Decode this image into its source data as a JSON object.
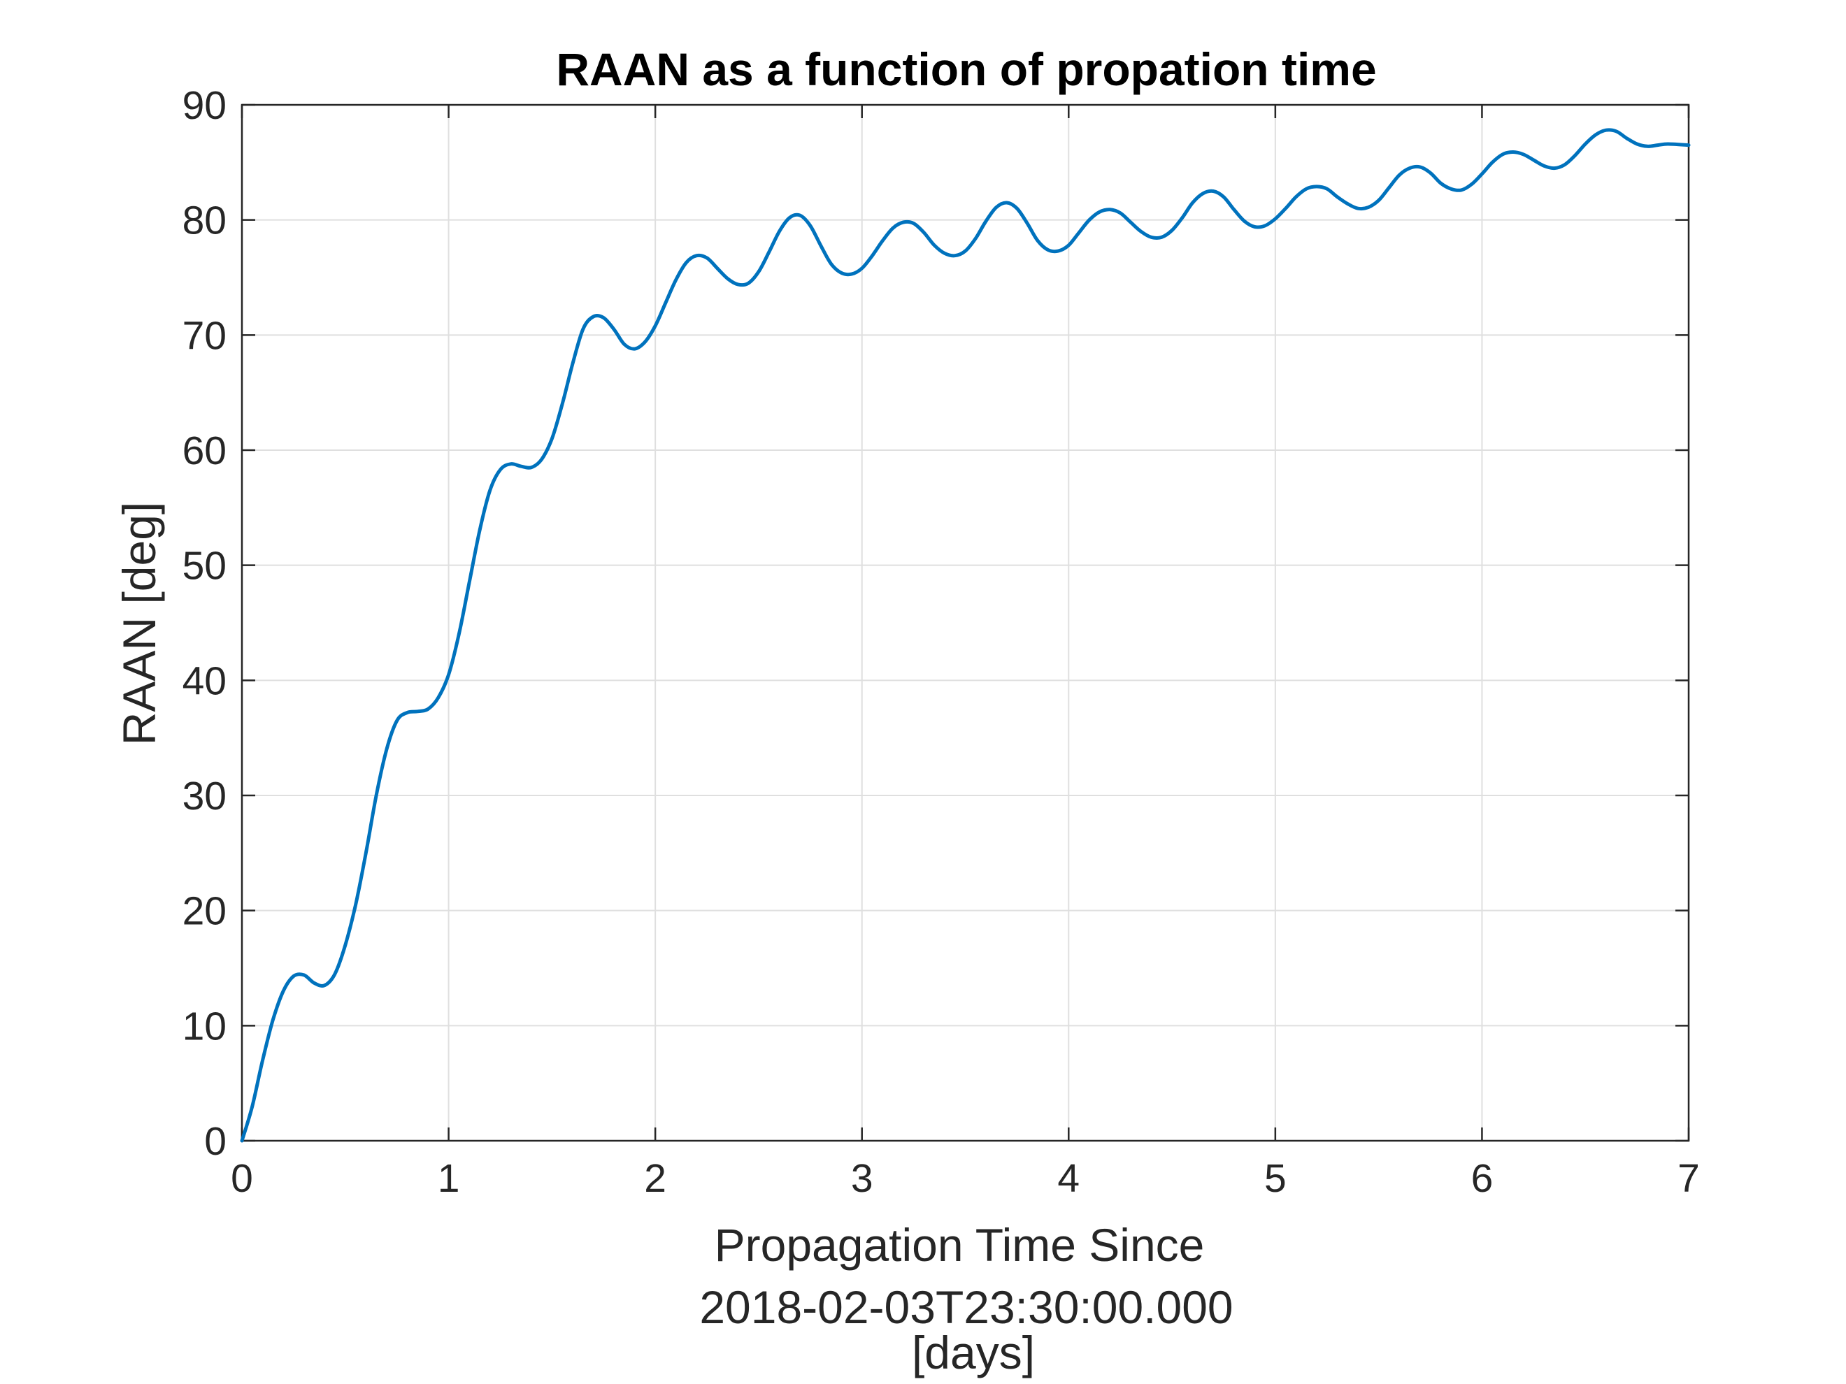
{
  "chart_data": {
    "type": "line",
    "title": "RAAN as a function of propation time",
    "xlabel_lines": [
      "Propagation Time Since",
      "2018-02-03T23:30:00.000",
      "[days]"
    ],
    "ylabel": "RAAN [deg]",
    "xlim": [
      0,
      7
    ],
    "ylim": [
      0,
      90
    ],
    "x_ticks": [
      0,
      1,
      2,
      3,
      4,
      5,
      6,
      7
    ],
    "y_ticks": [
      0,
      10,
      20,
      30,
      40,
      50,
      60,
      70,
      80,
      90
    ],
    "x_tick_labels": [
      "0",
      "1",
      "2",
      "3",
      "4",
      "5",
      "6",
      "7"
    ],
    "y_tick_labels": [
      "0",
      "10",
      "20",
      "30",
      "40",
      "50",
      "60",
      "70",
      "80",
      "90"
    ],
    "grid": true,
    "series": [
      {
        "color": "#0072bd",
        "points": [
          [
            0,
            0
          ],
          [
            0.05,
            3
          ],
          [
            0.1,
            7
          ],
          [
            0.15,
            10.5
          ],
          [
            0.2,
            13
          ],
          [
            0.25,
            14.3
          ],
          [
            0.3,
            14.4
          ],
          [
            0.35,
            13.7
          ],
          [
            0.4,
            13.5
          ],
          [
            0.45,
            14.5
          ],
          [
            0.5,
            17
          ],
          [
            0.55,
            20.5
          ],
          [
            0.6,
            25
          ],
          [
            0.65,
            30
          ],
          [
            0.7,
            34
          ],
          [
            0.75,
            36.5
          ],
          [
            0.8,
            37.2
          ],
          [
            0.85,
            37.3
          ],
          [
            0.9,
            37.5
          ],
          [
            0.95,
            38.5
          ],
          [
            1.0,
            40.5
          ],
          [
            1.05,
            44
          ],
          [
            1.1,
            48.5
          ],
          [
            1.15,
            53
          ],
          [
            1.2,
            56.5
          ],
          [
            1.25,
            58.3
          ],
          [
            1.3,
            58.8
          ],
          [
            1.35,
            58.6
          ],
          [
            1.4,
            58.5
          ],
          [
            1.45,
            59.2
          ],
          [
            1.5,
            61
          ],
          [
            1.55,
            64
          ],
          [
            1.6,
            67.5
          ],
          [
            1.65,
            70.5
          ],
          [
            1.7,
            71.6
          ],
          [
            1.75,
            71.5
          ],
          [
            1.8,
            70.5
          ],
          [
            1.85,
            69.2
          ],
          [
            1.9,
            68.8
          ],
          [
            1.95,
            69.4
          ],
          [
            2.0,
            70.8
          ],
          [
            2.05,
            72.8
          ],
          [
            2.1,
            74.8
          ],
          [
            2.15,
            76.3
          ],
          [
            2.2,
            76.9
          ],
          [
            2.25,
            76.7
          ],
          [
            2.3,
            75.8
          ],
          [
            2.35,
            74.9
          ],
          [
            2.4,
            74.4
          ],
          [
            2.45,
            74.5
          ],
          [
            2.5,
            75.5
          ],
          [
            2.55,
            77.2
          ],
          [
            2.6,
            79
          ],
          [
            2.65,
            80.2
          ],
          [
            2.7,
            80.4
          ],
          [
            2.75,
            79.5
          ],
          [
            2.8,
            77.8
          ],
          [
            2.85,
            76.2
          ],
          [
            2.9,
            75.4
          ],
          [
            2.95,
            75.3
          ],
          [
            3.0,
            75.8
          ],
          [
            3.05,
            76.9
          ],
          [
            3.1,
            78.2
          ],
          [
            3.15,
            79.3
          ],
          [
            3.2,
            79.8
          ],
          [
            3.25,
            79.7
          ],
          [
            3.3,
            78.9
          ],
          [
            3.35,
            77.8
          ],
          [
            3.4,
            77.1
          ],
          [
            3.45,
            76.9
          ],
          [
            3.5,
            77.3
          ],
          [
            3.55,
            78.4
          ],
          [
            3.6,
            79.9
          ],
          [
            3.65,
            81.1
          ],
          [
            3.7,
            81.5
          ],
          [
            3.75,
            81
          ],
          [
            3.8,
            79.7
          ],
          [
            3.85,
            78.2
          ],
          [
            3.9,
            77.4
          ],
          [
            3.95,
            77.3
          ],
          [
            4.0,
            77.8
          ],
          [
            4.05,
            78.9
          ],
          [
            4.1,
            80
          ],
          [
            4.15,
            80.7
          ],
          [
            4.2,
            80.9
          ],
          [
            4.25,
            80.6
          ],
          [
            4.3,
            79.8
          ],
          [
            4.35,
            79
          ],
          [
            4.4,
            78.5
          ],
          [
            4.45,
            78.5
          ],
          [
            4.5,
            79.1
          ],
          [
            4.55,
            80.2
          ],
          [
            4.6,
            81.5
          ],
          [
            4.65,
            82.3
          ],
          [
            4.7,
            82.5
          ],
          [
            4.75,
            82
          ],
          [
            4.8,
            80.9
          ],
          [
            4.85,
            79.9
          ],
          [
            4.9,
            79.4
          ],
          [
            4.95,
            79.5
          ],
          [
            5.0,
            80.1
          ],
          [
            5.05,
            81
          ],
          [
            5.1,
            82
          ],
          [
            5.15,
            82.7
          ],
          [
            5.2,
            82.9
          ],
          [
            5.25,
            82.7
          ],
          [
            5.3,
            82
          ],
          [
            5.35,
            81.4
          ],
          [
            5.4,
            81
          ],
          [
            5.45,
            81.1
          ],
          [
            5.5,
            81.7
          ],
          [
            5.55,
            82.8
          ],
          [
            5.6,
            83.9
          ],
          [
            5.65,
            84.5
          ],
          [
            5.7,
            84.6
          ],
          [
            5.75,
            84.1
          ],
          [
            5.8,
            83.2
          ],
          [
            5.85,
            82.7
          ],
          [
            5.9,
            82.6
          ],
          [
            5.95,
            83.1
          ],
          [
            6.0,
            84
          ],
          [
            6.05,
            85
          ],
          [
            6.1,
            85.7
          ],
          [
            6.15,
            85.9
          ],
          [
            6.2,
            85.7
          ],
          [
            6.25,
            85.2
          ],
          [
            6.3,
            84.7
          ],
          [
            6.35,
            84.5
          ],
          [
            6.4,
            84.8
          ],
          [
            6.45,
            85.6
          ],
          [
            6.5,
            86.6
          ],
          [
            6.55,
            87.4
          ],
          [
            6.6,
            87.8
          ],
          [
            6.65,
            87.7
          ],
          [
            6.7,
            87.1
          ],
          [
            6.75,
            86.6
          ],
          [
            6.8,
            86.4
          ],
          [
            6.85,
            86.5
          ],
          [
            6.9,
            86.6
          ],
          [
            7.0,
            86.5
          ]
        ]
      }
    ]
  }
}
